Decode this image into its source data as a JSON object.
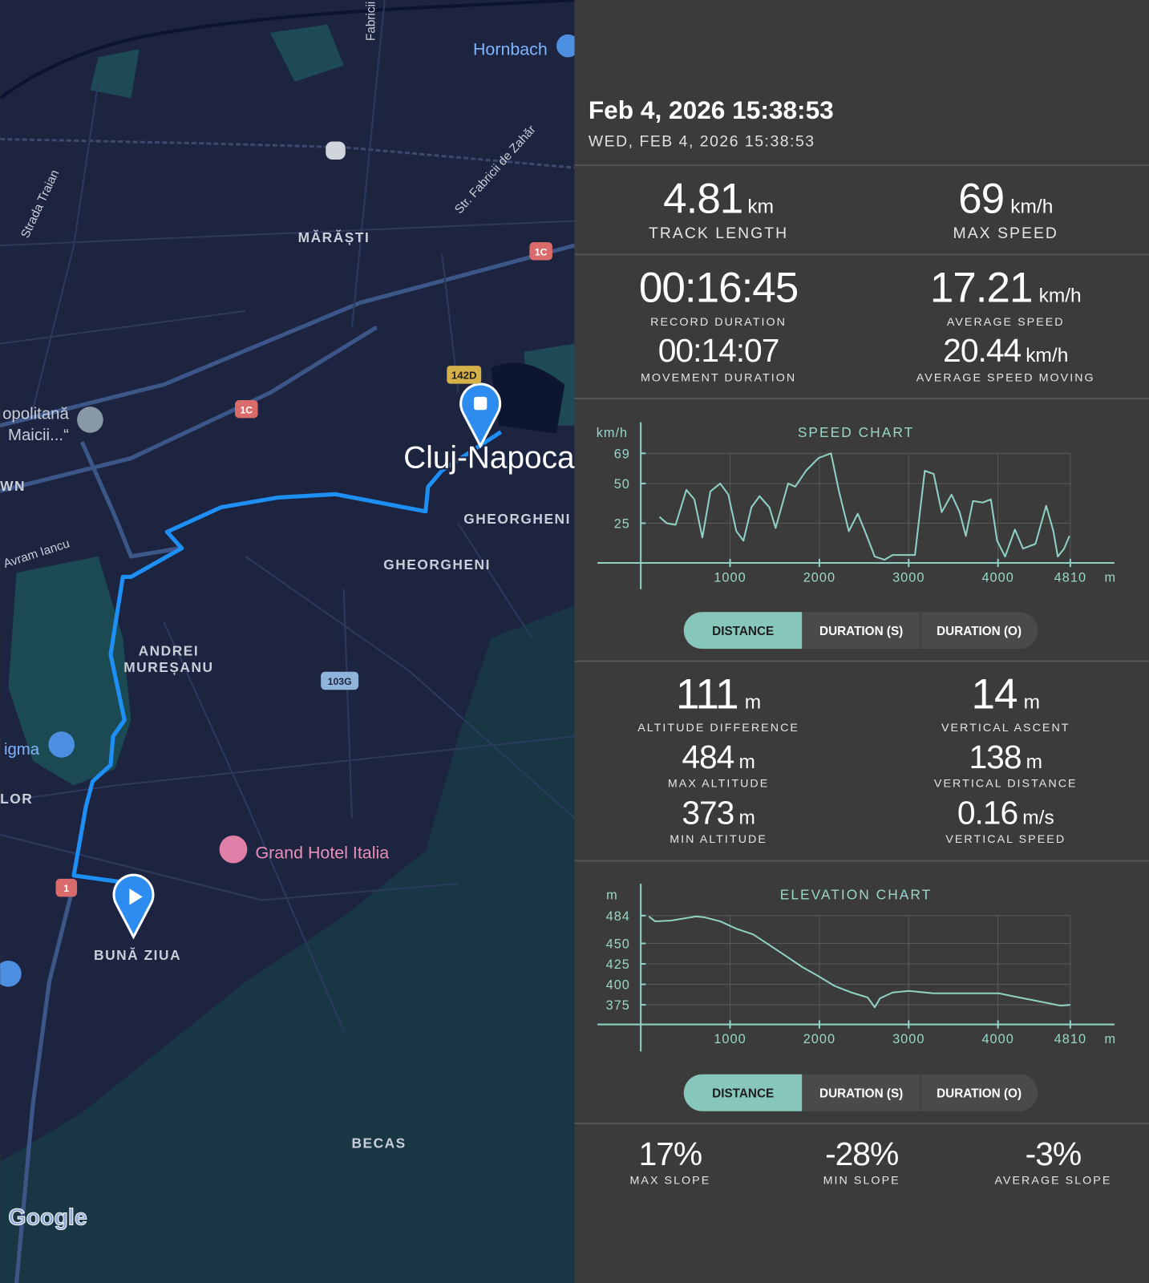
{
  "header": {
    "title": "Feb 4, 2026 15:38:53",
    "subtitle": "WED, FEB 4, 2026 15:38:53"
  },
  "map": {
    "labels": [
      "Hornbach",
      "Fabricii",
      "Strada Traian",
      "Str. Fabricii de Zahăr",
      "MĂRĂȘTI",
      "142D",
      "1C",
      "1C",
      "opolitană",
      "Maicii...“",
      "WN",
      "Cluj-Napoca",
      "GHEORGHENI",
      "GHEORGHENI",
      "Avram Iancu",
      "ANDREI",
      "MUREȘANU",
      "103G",
      "igma",
      "LOR",
      "Grand Hotel Italia",
      "1",
      "BUNĂ ZIUA",
      "BECAS",
      "Google"
    ]
  },
  "stats": {
    "track_length": {
      "value": 4.81,
      "unit": "km",
      "label": "TRACK LENGTH"
    },
    "max_speed": {
      "value": 69,
      "unit": "km/h",
      "label": "MAX SPEED"
    },
    "record_duration": {
      "value": "00:16:45",
      "label": "RECORD DURATION"
    },
    "average_speed": {
      "value": 17.21,
      "unit": "km/h",
      "label": "AVERAGE SPEED"
    },
    "movement_duration": {
      "value": "00:14:07",
      "label": "MOVEMENT DURATION"
    },
    "average_speed_moving": {
      "value": 20.44,
      "unit": "km/h",
      "label": "AVERAGE SPEED MOVING"
    },
    "altitude_difference": {
      "value": 111,
      "unit": "m",
      "label": "ALTITUDE DIFFERENCE"
    },
    "vertical_ascent": {
      "value": 14,
      "unit": "m",
      "label": "VERTICAL ASCENT"
    },
    "max_altitude": {
      "value": 484,
      "unit": "m",
      "label": "MAX ALTITUDE"
    },
    "vertical_distance": {
      "value": 138,
      "unit": "m",
      "label": "VERTICAL DISTANCE"
    },
    "min_altitude": {
      "value": 373,
      "unit": "m",
      "label": "MIN ALTITUDE"
    },
    "vertical_speed": {
      "value": 0.16,
      "unit": "m/s",
      "label": "VERTICAL SPEED"
    }
  },
  "chart_data": [
    {
      "type": "line",
      "title": "SPEED CHART",
      "y_label": "km/h",
      "x_label": "m",
      "x": [
        210,
        290,
        390,
        510,
        600,
        690,
        780,
        890,
        980,
        1070,
        1150,
        1240,
        1330,
        1440,
        1510,
        1650,
        1730,
        1850,
        1990,
        2130,
        2220,
        2330,
        2430,
        2510,
        2620,
        2730,
        2820,
        3070,
        3180,
        3280,
        3370,
        3480,
        3570,
        3640,
        3720,
        3830,
        3920,
        3990,
        4080,
        4190,
        4280,
        4420,
        4540,
        4620,
        4670,
        4740,
        4800
      ],
      "series": [
        {
          "color": "#8fd1c5",
          "values": [
            29,
            25,
            24,
            46,
            40,
            16,
            45,
            50,
            43,
            20,
            14,
            35,
            42,
            35,
            22,
            50,
            48,
            58,
            66,
            69,
            45,
            20,
            31,
            20,
            4,
            2,
            5,
            5,
            58,
            56,
            32,
            43,
            32,
            17,
            39,
            38,
            40,
            14,
            4,
            21,
            9,
            12,
            36,
            20,
            4,
            9,
            17
          ]
        }
      ],
      "xlim": [
        0,
        4810
      ],
      "ylim": [
        0,
        69
      ],
      "xticks": [
        1000,
        2000,
        3000,
        4000,
        4810
      ],
      "yticks": [
        25,
        50,
        69
      ],
      "grid": true
    },
    {
      "type": "line",
      "title": "ELEVATION CHART",
      "y_label": "m",
      "x_label": "m",
      "x": [
        90,
        160,
        340,
        510,
        620,
        710,
        890,
        1070,
        1260,
        1440,
        1620,
        1810,
        1990,
        2170,
        2360,
        2540,
        2620,
        2680,
        2820,
        3000,
        3280,
        3640,
        4010,
        4190,
        4470,
        4700,
        4810
      ],
      "series": [
        {
          "color": "#8fd1c5",
          "values": [
            483,
            477,
            478,
            481,
            483,
            482,
            477,
            468,
            461,
            448,
            435,
            421,
            410,
            398,
            390,
            384,
            372,
            383,
            390,
            392,
            389,
            389,
            389,
            385,
            379,
            374,
            375
          ]
        }
      ],
      "xlim": [
        0,
        4810
      ],
      "ylim": [
        351,
        484
      ],
      "xticks": [
        1000,
        2000,
        3000,
        4000,
        4810
      ],
      "yticks": [
        375,
        400,
        425,
        450,
        484
      ],
      "grid": true
    }
  ],
  "chart_toggles": [
    [
      "DISTANCE",
      "DURATION (S)",
      "DURATION (O)"
    ],
    [
      "DISTANCE",
      "DURATION (S)",
      "DURATION (O)"
    ]
  ],
  "slopes": [
    {
      "value": "17%",
      "label": "MAX SLOPE"
    },
    {
      "value": "-28%",
      "label": "MIN SLOPE"
    },
    {
      "value": "-3%",
      "label": "AVERAGE SLOPE"
    }
  ]
}
